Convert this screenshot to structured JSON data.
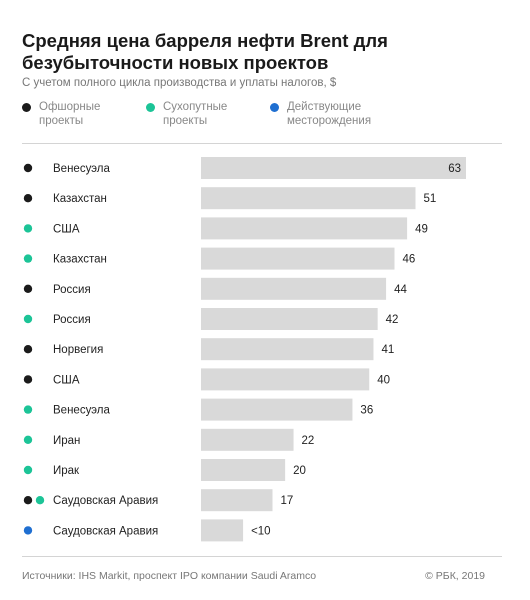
{
  "title": "Средняя цена барреля нефти Brent для безубыточности новых проектов",
  "subtitle": "С учетом полного цикла производства и уплаты налогов, $",
  "colors": {
    "offshore": "#1b1b1b",
    "onshore": "#1cc497",
    "existing": "#1f6fd1",
    "bar": "#d9d9d9"
  },
  "legend": [
    {
      "key": "offshore",
      "label": "Офшорные проекты",
      "color": "#1b1b1b"
    },
    {
      "key": "onshore",
      "label": "Сухопутные проекты",
      "color": "#1cc497"
    },
    {
      "key": "existing",
      "label": "Действующие месторождения",
      "color": "#1f6fd1"
    }
  ],
  "footer": {
    "source": "Источники: IHS Markit, проспект IPO компании Saudi Aramco",
    "copyright": "© РБК, 2019"
  },
  "chart_data": {
    "type": "bar",
    "orientation": "horizontal",
    "categories": [
      "Венесуэла",
      "Казахстан",
      "США",
      "Казахстан",
      "Россия",
      "Россия",
      "Норвегия",
      "США",
      "Венесуэла",
      "Иран",
      "Ирак",
      "Саудовская Аравия",
      "Саудовская Аравия"
    ],
    "values": [
      63,
      51,
      49,
      46,
      44,
      42,
      41,
      40,
      36,
      22,
      20,
      17,
      10
    ],
    "value_labels": [
      "63",
      "51",
      "49",
      "46",
      "44",
      "42",
      "41",
      "40",
      "36",
      "22",
      "20",
      "17",
      "<10"
    ],
    "types": [
      [
        "offshore"
      ],
      [
        "offshore"
      ],
      [
        "onshore"
      ],
      [
        "onshore"
      ],
      [
        "offshore"
      ],
      [
        "onshore"
      ],
      [
        "offshore"
      ],
      [
        "offshore"
      ],
      [
        "onshore"
      ],
      [
        "onshore"
      ],
      [
        "onshore"
      ],
      [
        "offshore",
        "onshore"
      ],
      [
        "existing"
      ]
    ],
    "xlim": [
      0,
      63
    ]
  }
}
